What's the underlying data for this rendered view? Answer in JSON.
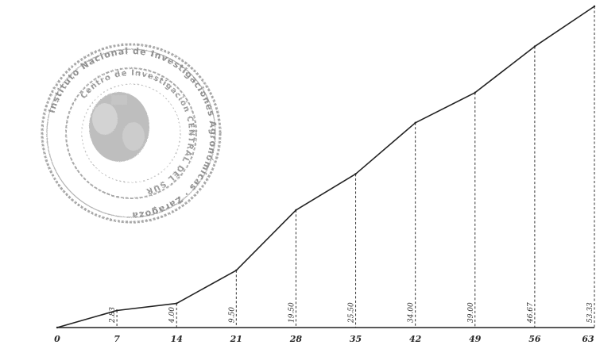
{
  "chart_data": {
    "type": "line",
    "x": [
      0,
      7,
      14,
      21,
      28,
      35,
      42,
      49,
      56,
      63
    ],
    "y": [
      0,
      2.83,
      4.0,
      9.5,
      19.5,
      25.5,
      34.0,
      39.0,
      46.67,
      53.33
    ],
    "x_tick_labels": [
      "0",
      "7",
      "14",
      "21",
      "28",
      "35",
      "42",
      "49",
      "56",
      "63"
    ],
    "data_labels": [
      "",
      "2.83",
      "4.00",
      "9.50",
      "19.50",
      "25.50",
      "34.00",
      "39.00",
      "46.67",
      "53.33"
    ],
    "xlim": [
      0,
      63
    ],
    "ylim": [
      0,
      53.33
    ],
    "grid": false,
    "line_color": "#222222",
    "drop_lines": "dashed"
  },
  "stamp": {
    "outer_text": "Instituto Nacional de Investigaciones Agronómicas",
    "inner_text": "Centro de Investigación CENTRAL DEL SUR",
    "bottom_text": "Zaragoza",
    "color": "#7a7a7a"
  }
}
